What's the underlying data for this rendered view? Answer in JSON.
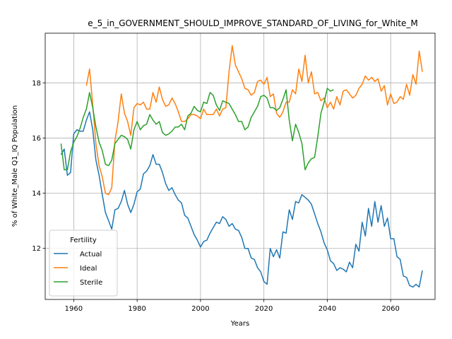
{
  "chart_data": {
    "type": "line",
    "title": "e_5_in_GOVERNMENT_SHOULD_IMPROVE_STANDARD_OF_LIVING_for_White_M",
    "xlabel": "Years",
    "ylabel": "% of White_Male Q1_IQ Population",
    "xlim": [
      1951,
      2074
    ],
    "ylim": [
      10.15,
      19.8
    ],
    "xticks": [
      1960,
      1980,
      2000,
      2020,
      2040,
      2060
    ],
    "yticks": [
      12,
      14,
      16,
      18
    ],
    "grid": true,
    "legend": {
      "title": "Fertility",
      "placement": "lower-left"
    },
    "series": [
      {
        "name": "Actual",
        "color": "#1f77b4",
        "points": [
          [
            1956,
            15.4
          ],
          [
            1957,
            15.6
          ],
          [
            1958,
            14.65
          ],
          [
            1959,
            14.75
          ],
          [
            1960,
            16.15
          ],
          [
            1961,
            16.3
          ],
          [
            1962,
            16.25
          ],
          [
            1963,
            16.25
          ],
          [
            1964,
            16.65
          ],
          [
            1965,
            16.95
          ],
          [
            1966,
            16.3
          ],
          [
            1967,
            15.2
          ],
          [
            1968,
            14.65
          ],
          [
            1969,
            13.95
          ],
          [
            1970,
            13.3
          ],
          [
            1971,
            13.0
          ],
          [
            1972,
            12.7
          ],
          [
            1973,
            13.4
          ],
          [
            1974,
            13.45
          ],
          [
            1975,
            13.7
          ],
          [
            1976,
            14.1
          ],
          [
            1977,
            13.6
          ],
          [
            1978,
            13.3
          ],
          [
            1979,
            13.6
          ],
          [
            1980,
            14.05
          ],
          [
            1981,
            14.15
          ],
          [
            1982,
            14.7
          ],
          [
            1983,
            14.8
          ],
          [
            1984,
            15.0
          ],
          [
            1985,
            15.4
          ],
          [
            1986,
            15.05
          ],
          [
            1987,
            15.05
          ],
          [
            1988,
            14.75
          ],
          [
            1989,
            14.35
          ],
          [
            1990,
            14.1
          ],
          [
            1991,
            14.2
          ],
          [
            1992,
            13.95
          ],
          [
            1993,
            13.75
          ],
          [
            1994,
            13.65
          ],
          [
            1995,
            13.2
          ],
          [
            1996,
            13.1
          ],
          [
            1997,
            12.8
          ],
          [
            1998,
            12.5
          ],
          [
            1999,
            12.3
          ],
          [
            2000,
            12.05
          ],
          [
            2001,
            12.25
          ],
          [
            2002,
            12.3
          ],
          [
            2003,
            12.55
          ],
          [
            2004,
            12.75
          ],
          [
            2005,
            12.95
          ],
          [
            2006,
            12.9
          ],
          [
            2007,
            13.15
          ],
          [
            2008,
            13.05
          ],
          [
            2009,
            12.8
          ],
          [
            2010,
            12.9
          ],
          [
            2011,
            12.7
          ],
          [
            2012,
            12.65
          ],
          [
            2013,
            12.4
          ],
          [
            2014,
            12.0
          ],
          [
            2015,
            12.0
          ],
          [
            2016,
            11.65
          ],
          [
            2017,
            11.6
          ],
          [
            2018,
            11.3
          ],
          [
            2019,
            11.15
          ],
          [
            2020,
            10.8
          ],
          [
            2021,
            10.7
          ],
          [
            2022,
            12.0
          ],
          [
            2023,
            11.7
          ],
          [
            2024,
            11.95
          ],
          [
            2025,
            11.65
          ],
          [
            2026,
            12.6
          ],
          [
            2027,
            12.55
          ],
          [
            2028,
            13.4
          ],
          [
            2029,
            13.05
          ],
          [
            2030,
            13.7
          ],
          [
            2031,
            13.65
          ],
          [
            2032,
            13.95
          ],
          [
            2033,
            13.85
          ],
          [
            2034,
            13.75
          ],
          [
            2035,
            13.6
          ],
          [
            2036,
            13.25
          ],
          [
            2037,
            12.9
          ],
          [
            2038,
            12.6
          ],
          [
            2039,
            12.2
          ],
          [
            2040,
            11.95
          ],
          [
            2041,
            11.55
          ],
          [
            2042,
            11.45
          ],
          [
            2043,
            11.2
          ],
          [
            2044,
            11.3
          ],
          [
            2045,
            11.25
          ],
          [
            2046,
            11.15
          ],
          [
            2047,
            11.5
          ],
          [
            2048,
            11.3
          ],
          [
            2049,
            12.15
          ],
          [
            2050,
            11.9
          ],
          [
            2051,
            12.95
          ],
          [
            2052,
            12.45
          ],
          [
            2053,
            13.45
          ],
          [
            2054,
            12.8
          ],
          [
            2055,
            13.7
          ],
          [
            2056,
            12.95
          ],
          [
            2057,
            13.55
          ],
          [
            2058,
            12.8
          ],
          [
            2059,
            13.1
          ],
          [
            2060,
            12.35
          ],
          [
            2061,
            12.35
          ],
          [
            2062,
            11.7
          ],
          [
            2063,
            11.6
          ],
          [
            2064,
            11.0
          ],
          [
            2065,
            10.95
          ],
          [
            2066,
            10.65
          ],
          [
            2067,
            10.6
          ],
          [
            2068,
            10.7
          ],
          [
            2069,
            10.6
          ],
          [
            2070,
            11.2
          ]
        ]
      },
      {
        "name": "Ideal",
        "color": "#ff7f0e",
        "points": [
          [
            1964,
            17.9
          ],
          [
            1965,
            18.5
          ],
          [
            1966,
            17.2
          ],
          [
            1967,
            15.8
          ],
          [
            1968,
            15.0
          ],
          [
            1969,
            14.6
          ],
          [
            1970,
            14.0
          ],
          [
            1971,
            13.95
          ],
          [
            1972,
            14.2
          ],
          [
            1973,
            15.9
          ],
          [
            1974,
            16.6
          ],
          [
            1975,
            17.6
          ],
          [
            1976,
            16.9
          ],
          [
            1977,
            16.6
          ],
          [
            1978,
            16.1
          ],
          [
            1979,
            17.1
          ],
          [
            1980,
            17.25
          ],
          [
            1981,
            17.2
          ],
          [
            1982,
            17.3
          ],
          [
            1983,
            17.05
          ],
          [
            1984,
            17.05
          ],
          [
            1985,
            17.65
          ],
          [
            1986,
            17.3
          ],
          [
            1987,
            17.85
          ],
          [
            1988,
            17.4
          ],
          [
            1989,
            17.15
          ],
          [
            1990,
            17.2
          ],
          [
            1991,
            17.45
          ],
          [
            1992,
            17.25
          ],
          [
            1993,
            16.95
          ],
          [
            1994,
            16.6
          ],
          [
            1995,
            16.6
          ],
          [
            1996,
            16.7
          ],
          [
            1997,
            16.85
          ],
          [
            1998,
            16.85
          ],
          [
            1999,
            16.8
          ],
          [
            2000,
            16.7
          ],
          [
            2001,
            17.05
          ],
          [
            2002,
            16.85
          ],
          [
            2003,
            16.85
          ],
          [
            2004,
            16.85
          ],
          [
            2005,
            17.05
          ],
          [
            2006,
            16.8
          ],
          [
            2007,
            17.05
          ],
          [
            2008,
            17.1
          ],
          [
            2009,
            18.4
          ],
          [
            2010,
            19.35
          ],
          [
            2011,
            18.65
          ],
          [
            2012,
            18.4
          ],
          [
            2013,
            18.15
          ],
          [
            2014,
            17.8
          ],
          [
            2015,
            17.75
          ],
          [
            2016,
            17.55
          ],
          [
            2017,
            17.65
          ],
          [
            2018,
            18.05
          ],
          [
            2019,
            18.1
          ],
          [
            2020,
            17.95
          ],
          [
            2021,
            18.2
          ],
          [
            2022,
            17.5
          ],
          [
            2023,
            17.6
          ],
          [
            2024,
            16.9
          ],
          [
            2025,
            16.75
          ],
          [
            2026,
            16.95
          ],
          [
            2027,
            17.3
          ],
          [
            2028,
            17.3
          ],
          [
            2029,
            17.75
          ],
          [
            2030,
            17.6
          ],
          [
            2031,
            18.5
          ],
          [
            2032,
            18.05
          ],
          [
            2033,
            19.0
          ],
          [
            2034,
            18.0
          ],
          [
            2035,
            18.4
          ],
          [
            2036,
            17.6
          ],
          [
            2037,
            17.65
          ],
          [
            2038,
            17.35
          ],
          [
            2039,
            17.45
          ],
          [
            2040,
            17.1
          ],
          [
            2041,
            17.3
          ],
          [
            2042,
            17.05
          ],
          [
            2043,
            17.5
          ],
          [
            2044,
            17.2
          ],
          [
            2045,
            17.7
          ],
          [
            2046,
            17.75
          ],
          [
            2047,
            17.6
          ],
          [
            2048,
            17.45
          ],
          [
            2049,
            17.55
          ],
          [
            2050,
            17.8
          ],
          [
            2051,
            17.95
          ],
          [
            2052,
            18.25
          ],
          [
            2053,
            18.1
          ],
          [
            2054,
            18.2
          ],
          [
            2055,
            18.05
          ],
          [
            2056,
            18.15
          ],
          [
            2057,
            17.7
          ],
          [
            2058,
            17.9
          ],
          [
            2059,
            17.2
          ],
          [
            2060,
            17.6
          ],
          [
            2061,
            17.25
          ],
          [
            2062,
            17.3
          ],
          [
            2063,
            17.5
          ],
          [
            2064,
            17.4
          ],
          [
            2065,
            17.95
          ],
          [
            2066,
            17.55
          ],
          [
            2067,
            18.3
          ],
          [
            2068,
            17.95
          ],
          [
            2069,
            19.15
          ],
          [
            2070,
            18.4
          ]
        ]
      },
      {
        "name": "Sterile",
        "color": "#2ca02c",
        "points": [
          [
            1956,
            15.8
          ],
          [
            1957,
            14.85
          ],
          [
            1958,
            14.85
          ],
          [
            1959,
            15.5
          ],
          [
            1960,
            15.85
          ],
          [
            1961,
            16.05
          ],
          [
            1962,
            16.35
          ],
          [
            1963,
            16.75
          ],
          [
            1964,
            17.05
          ],
          [
            1965,
            17.65
          ],
          [
            1966,
            17.1
          ],
          [
            1967,
            16.4
          ],
          [
            1968,
            15.85
          ],
          [
            1969,
            15.55
          ],
          [
            1970,
            15.05
          ],
          [
            1971,
            15.0
          ],
          [
            1972,
            15.2
          ],
          [
            1973,
            15.8
          ],
          [
            1974,
            15.95
          ],
          [
            1975,
            16.1
          ],
          [
            1976,
            16.05
          ],
          [
            1977,
            15.95
          ],
          [
            1978,
            15.6
          ],
          [
            1979,
            16.3
          ],
          [
            1980,
            16.6
          ],
          [
            1981,
            16.3
          ],
          [
            1982,
            16.45
          ],
          [
            1983,
            16.5
          ],
          [
            1984,
            16.85
          ],
          [
            1985,
            16.65
          ],
          [
            1986,
            16.5
          ],
          [
            1987,
            16.6
          ],
          [
            1988,
            16.2
          ],
          [
            1989,
            16.1
          ],
          [
            1990,
            16.15
          ],
          [
            1991,
            16.25
          ],
          [
            1992,
            16.4
          ],
          [
            1993,
            16.4
          ],
          [
            1994,
            16.5
          ],
          [
            1995,
            16.3
          ],
          [
            1996,
            16.8
          ],
          [
            1997,
            16.9
          ],
          [
            1998,
            17.15
          ],
          [
            1999,
            17.0
          ],
          [
            2000,
            16.95
          ],
          [
            2001,
            17.3
          ],
          [
            2002,
            17.25
          ],
          [
            2003,
            17.65
          ],
          [
            2004,
            17.55
          ],
          [
            2005,
            17.2
          ],
          [
            2006,
            17.0
          ],
          [
            2007,
            17.35
          ],
          [
            2008,
            17.3
          ],
          [
            2009,
            17.25
          ],
          [
            2010,
            17.05
          ],
          [
            2011,
            16.85
          ],
          [
            2012,
            16.6
          ],
          [
            2013,
            16.6
          ],
          [
            2014,
            16.3
          ],
          [
            2015,
            16.4
          ],
          [
            2016,
            16.75
          ],
          [
            2017,
            16.95
          ],
          [
            2018,
            17.15
          ],
          [
            2019,
            17.5
          ],
          [
            2020,
            17.55
          ],
          [
            2021,
            17.45
          ],
          [
            2022,
            17.1
          ],
          [
            2023,
            17.1
          ],
          [
            2024,
            17.0
          ],
          [
            2025,
            17.1
          ],
          [
            2026,
            17.4
          ],
          [
            2027,
            17.75
          ],
          [
            2028,
            16.65
          ],
          [
            2029,
            15.9
          ],
          [
            2030,
            16.5
          ],
          [
            2031,
            16.2
          ],
          [
            2032,
            15.8
          ],
          [
            2033,
            14.85
          ],
          [
            2034,
            15.1
          ],
          [
            2035,
            15.25
          ],
          [
            2036,
            15.3
          ],
          [
            2037,
            16.05
          ],
          [
            2038,
            16.9
          ],
          [
            2039,
            17.3
          ],
          [
            2040,
            17.8
          ],
          [
            2041,
            17.7
          ],
          [
            2042,
            17.75
          ]
        ]
      }
    ]
  }
}
